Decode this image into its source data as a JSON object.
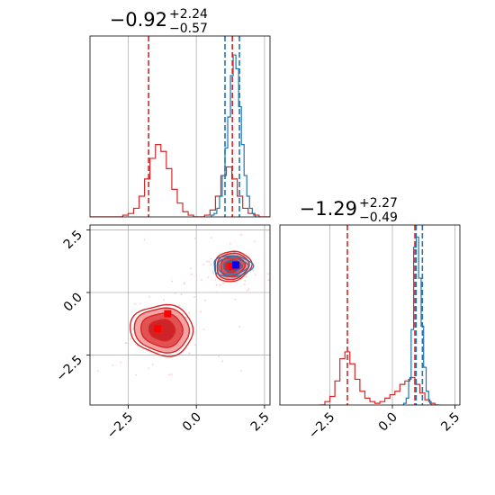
{
  "colors": {
    "red": "#d62728",
    "blue": "#1f77b4",
    "fill_light": "#f4a3a3",
    "fill_mid": "#e35252",
    "fill_dark": "#cf2427",
    "grid": "#b0b0b0",
    "marker_red": "#ff0000",
    "marker_blue": "#0000ff"
  },
  "chart_data": [
    {
      "panel": "marginal-top",
      "type": "histogram",
      "title": {
        "main": "−0.92",
        "upper": "+2.24",
        "lower": "−0.57"
      },
      "xlim": [
        -3.9,
        2.7
      ],
      "ylim": [
        0,
        1.05
      ],
      "grid_x": [
        -2.5,
        0,
        2.5
      ],
      "x_ticks": [],
      "series": [
        {
          "name": "",
          "color": "red",
          "x": [
            -4.0,
            -3.8,
            -3.6,
            -3.4,
            -3.2,
            -3.0,
            -2.8,
            -2.6,
            -2.4,
            -2.2,
            -2.0,
            -1.8,
            -1.6,
            -1.4,
            -1.2,
            -1.0,
            -0.8,
            -0.6,
            -0.4,
            -0.2,
            0.0,
            0.2,
            0.4,
            0.6,
            0.8,
            1.0,
            1.2,
            1.4,
            1.6,
            1.8,
            2.0,
            2.2,
            2.4,
            2.6
          ],
          "values": [
            0,
            0,
            0,
            0,
            0,
            0,
            0,
            0.01,
            0.02,
            0.05,
            0.12,
            0.22,
            0.34,
            0.42,
            0.38,
            0.28,
            0.16,
            0.08,
            0.03,
            0.01,
            0,
            0,
            0.01,
            0.04,
            0.12,
            0.24,
            0.29,
            0.22,
            0.12,
            0.05,
            0.02,
            0.01,
            0,
            0
          ]
        },
        {
          "name": "",
          "color": "blue",
          "x": [
            0.6,
            0.7,
            0.8,
            0.9,
            1.0,
            1.1,
            1.2,
            1.3,
            1.4,
            1.5,
            1.6,
            1.7,
            1.8,
            1.9,
            2.0,
            2.1,
            2.2
          ],
          "values": [
            0.01,
            0.02,
            0.05,
            0.12,
            0.24,
            0.4,
            0.58,
            0.82,
            0.94,
            0.86,
            0.64,
            0.42,
            0.24,
            0.12,
            0.05,
            0.02,
            0
          ]
        }
      ],
      "vlines": [
        {
          "x": -1.75,
          "color": "red"
        },
        {
          "x": 1.32,
          "color": "red"
        },
        {
          "x": 1.05,
          "color": "blue"
        },
        {
          "x": 1.58,
          "color": "blue"
        }
      ]
    },
    {
      "panel": "joint",
      "type": "contour",
      "xlim": [
        -3.9,
        2.7
      ],
      "ylim": [
        -4.5,
        2.7
      ],
      "x_ticks": [
        "-2.5",
        "0.0",
        "2.5"
      ],
      "y_ticks": [
        "2.5",
        "0.0",
        "-2.5"
      ],
      "x_tick_values": [
        -2.5,
        0.0,
        2.5
      ],
      "y_tick_values": [
        2.5,
        0.0,
        -2.5
      ],
      "clusters": [
        {
          "cx": -1.25,
          "cy": -1.5,
          "sx": 0.48,
          "sy": 0.42,
          "rho": -0.05
        },
        {
          "cx": 1.32,
          "cy": 1.05,
          "sx": 0.28,
          "sy": 0.25,
          "rho": 0.1
        }
      ],
      "blue_contour": {
        "cx": 1.32,
        "cy": 1.05,
        "sx": 0.34,
        "sy": 0.2
      },
      "markers": [
        {
          "x": -1.42,
          "y": -1.45,
          "color": "marker_red"
        },
        {
          "x": -1.05,
          "y": -0.85,
          "color": "marker_red"
        },
        {
          "x": 1.32,
          "y": 1.05,
          "color": "marker_red"
        },
        {
          "x": 1.45,
          "y": 1.1,
          "color": "marker_blue"
        }
      ]
    },
    {
      "panel": "marginal-right",
      "type": "histogram",
      "title": {
        "main": "−1.29",
        "upper": "+2.27",
        "lower": "−0.49"
      },
      "xlim": [
        -4.5,
        2.7
      ],
      "ylim": [
        0,
        1.05
      ],
      "grid_x": [
        -2.5,
        0,
        2.5
      ],
      "x_ticks": [
        "-2.5",
        "0.0",
        "2.5"
      ],
      "x_tick_values": [
        -2.5,
        0.0,
        2.5
      ],
      "series": [
        {
          "name": "",
          "color": "red",
          "x": [
            -2.8,
            -2.6,
            -2.4,
            -2.2,
            -2.0,
            -1.8,
            -1.6,
            -1.4,
            -1.2,
            -1.0,
            -0.8,
            -0.6,
            -0.4,
            -0.2,
            0.0,
            0.2,
            0.4,
            0.6,
            0.8,
            1.0,
            1.2,
            1.4,
            1.6,
            1.8
          ],
          "values": [
            0,
            0.02,
            0.05,
            0.14,
            0.27,
            0.31,
            0.24,
            0.15,
            0.08,
            0.04,
            0.02,
            0.01,
            0.02,
            0.04,
            0.06,
            0.08,
            0.12,
            0.14,
            0.16,
            0.12,
            0.07,
            0.03,
            0.01,
            0
          ]
        },
        {
          "name": "",
          "color": "blue",
          "x": [
            0.5,
            0.6,
            0.7,
            0.8,
            0.9,
            1.0,
            1.1,
            1.2,
            1.3,
            1.4,
            1.5,
            1.6
          ],
          "values": [
            0.01,
            0.04,
            0.15,
            0.44,
            0.92,
            0.98,
            0.74,
            0.46,
            0.22,
            0.08,
            0.02,
            0
          ]
        }
      ],
      "vlines": [
        {
          "x": -1.8,
          "color": "red"
        },
        {
          "x": 0.9,
          "color": "red"
        },
        {
          "x": 0.95,
          "color": "blue"
        },
        {
          "x": 1.2,
          "color": "blue"
        }
      ]
    }
  ]
}
